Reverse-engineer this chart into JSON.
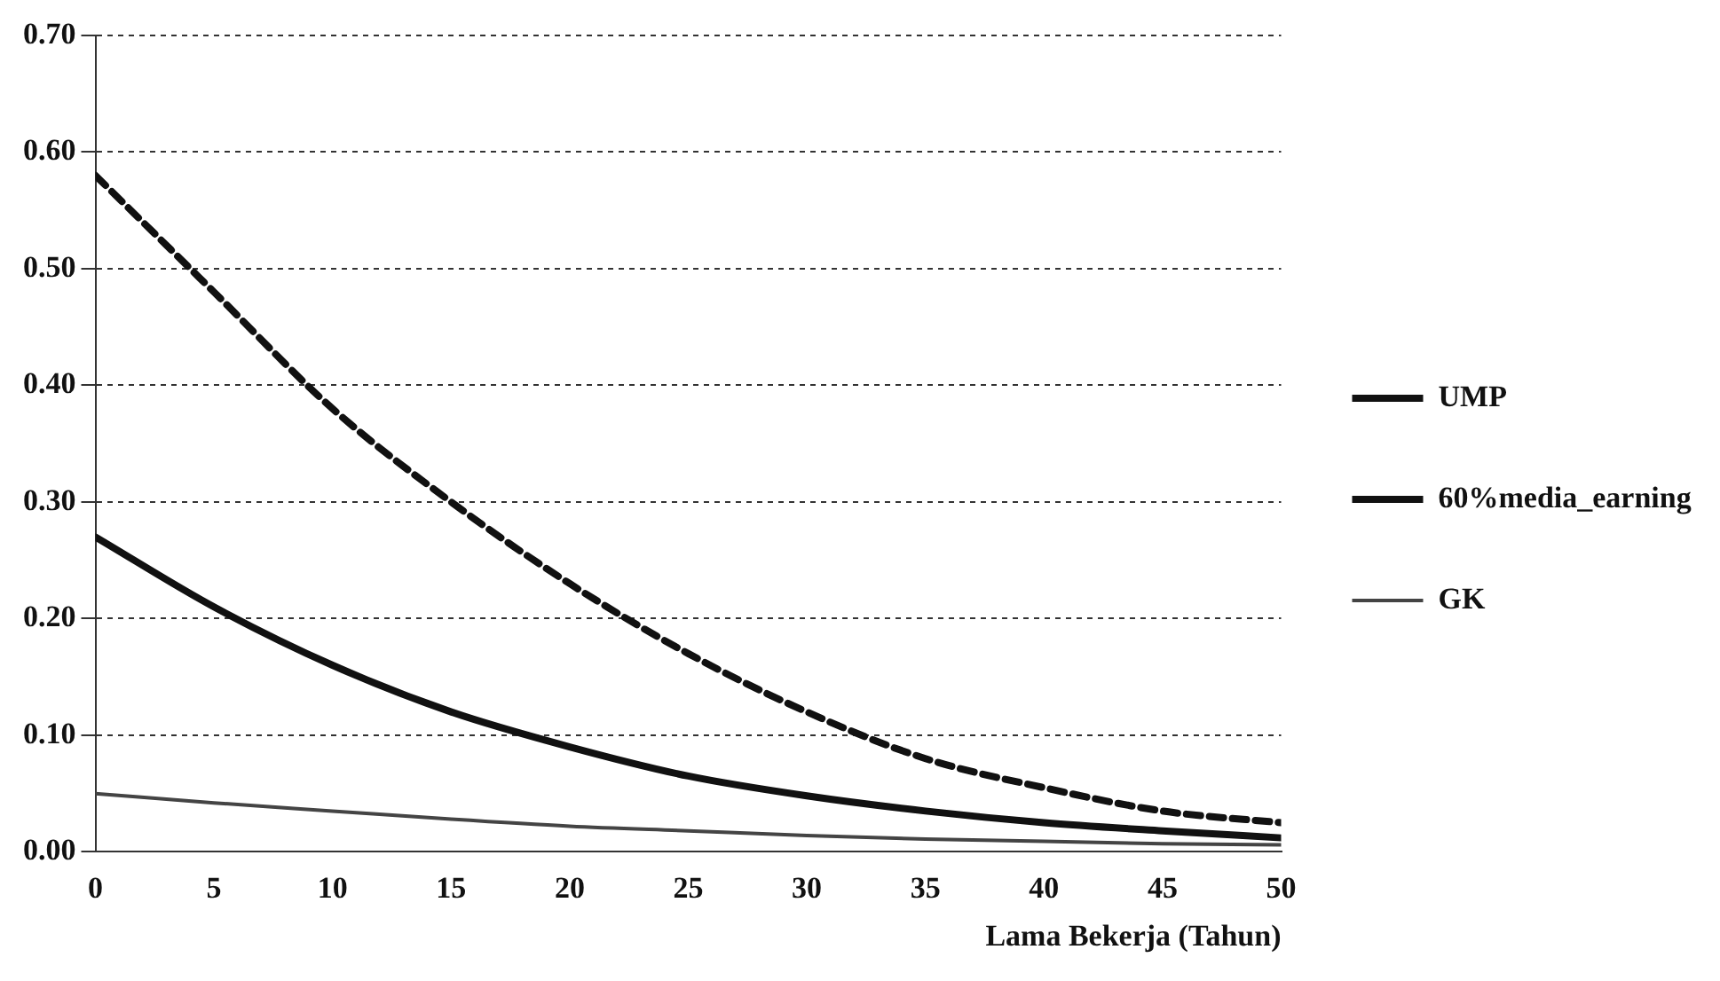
{
  "chart_data": {
    "type": "line",
    "xlabel": "Lama Bekerja (Tahun)",
    "x": [
      0,
      5,
      10,
      15,
      20,
      25,
      30,
      35,
      40,
      45,
      50
    ],
    "xlim": [
      0,
      50
    ],
    "xticks": [
      0,
      5,
      10,
      15,
      20,
      25,
      30,
      35,
      40,
      45,
      50
    ],
    "ylim": [
      0,
      0.7
    ],
    "yticks": [
      {
        "value": 0,
        "label": "0.00"
      },
      {
        "value": 0.1,
        "label": "0.10"
      },
      {
        "value": 0.2,
        "label": "0.20"
      },
      {
        "value": 0.3,
        "label": "0.30"
      },
      {
        "value": 0.4,
        "label": "0.40"
      },
      {
        "value": 0.5,
        "label": "0.50"
      },
      {
        "value": 0.6,
        "label": "0.60"
      },
      {
        "value": 0.7,
        "label": "0.70"
      }
    ],
    "grid": "y",
    "legend": "right",
    "marker": "none",
    "series": [
      {
        "name": "UMP",
        "color": "#111111",
        "line_style": "dashed",
        "values": [
          0.58,
          0.48,
          0.38,
          0.3,
          0.23,
          0.17,
          0.12,
          0.08,
          0.055,
          0.035,
          0.025
        ]
      },
      {
        "name": "60%media_earning",
        "color": "#111111",
        "line_style": "solid",
        "values": [
          0.27,
          0.21,
          0.16,
          0.12,
          0.09,
          0.065,
          0.048,
          0.035,
          0.025,
          0.018,
          0.012
        ]
      },
      {
        "name": "GK",
        "color": "#444444",
        "line_style": "solid",
        "values": [
          0.05,
          0.042,
          0.035,
          0.028,
          0.022,
          0.018,
          0.014,
          0.011,
          0.009,
          0.007,
          0.006
        ]
      }
    ]
  }
}
